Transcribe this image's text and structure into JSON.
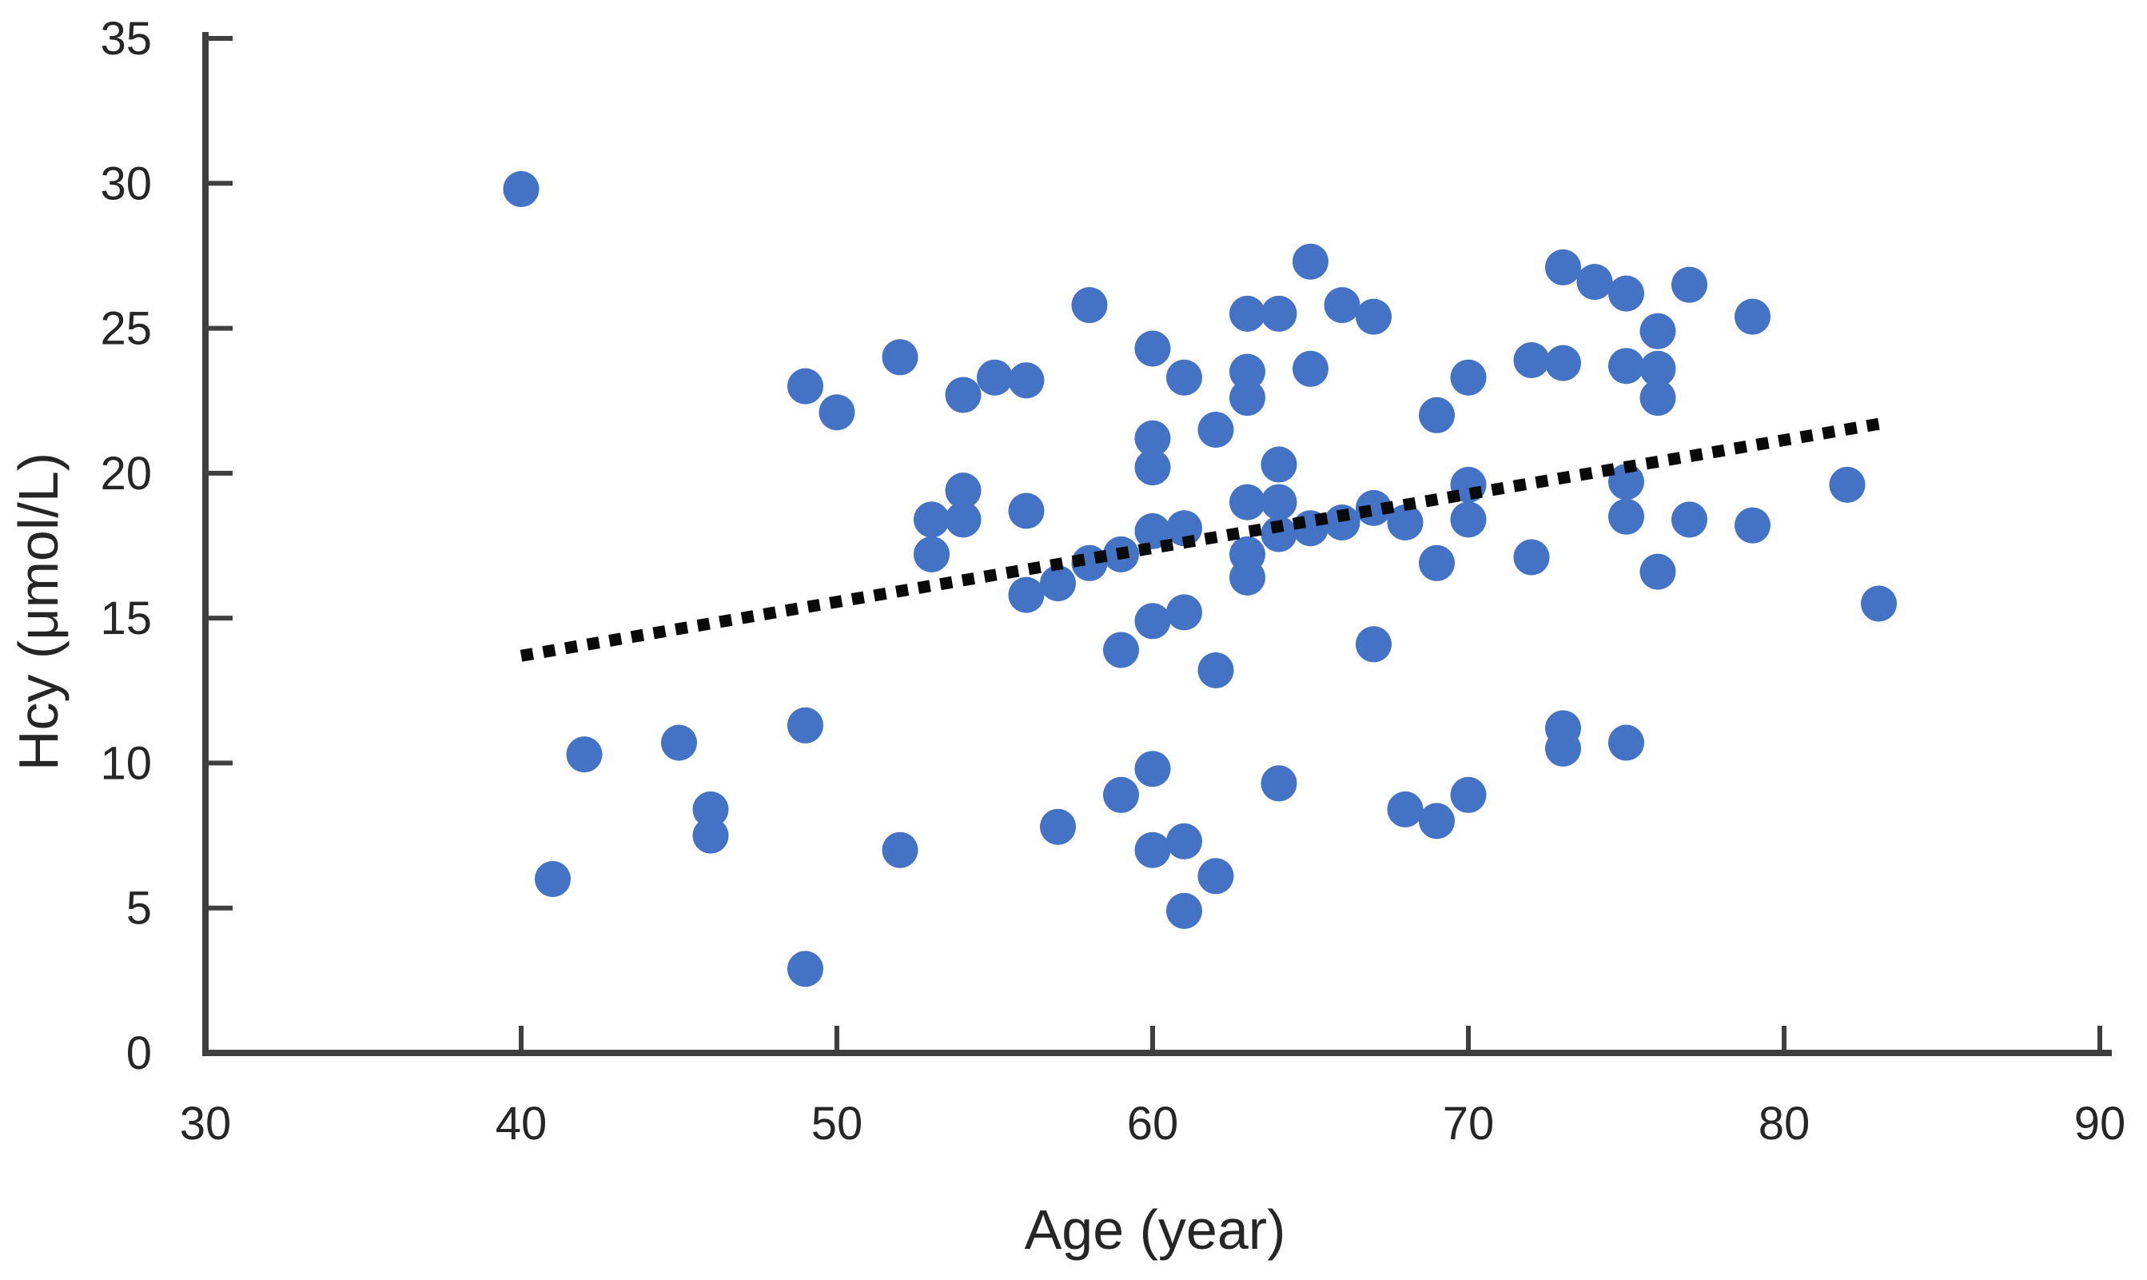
{
  "chart_data": {
    "type": "scatter",
    "title": "",
    "xlabel": "Age (year)",
    "ylabel": "Hcy (μmol/L)",
    "xlim": [
      30,
      90
    ],
    "ylim": [
      0,
      35
    ],
    "x_ticks": [
      30,
      40,
      50,
      60,
      70,
      80,
      90
    ],
    "y_ticks": [
      0,
      5,
      10,
      15,
      20,
      25,
      30,
      35
    ],
    "grid": false,
    "legend_position": "none",
    "marker_color": "#4472C4",
    "axis_color": "#3f3f3f",
    "label_color": "#262626",
    "trendline": {
      "style": "dotted",
      "color": "#0a0a0a",
      "x1": 40,
      "y1": 13.7,
      "x2": 83,
      "y2": 21.7
    },
    "points": [
      [
        40,
        29.8
      ],
      [
        41,
        6.0
      ],
      [
        42,
        10.3
      ],
      [
        45,
        10.7
      ],
      [
        46,
        8.4
      ],
      [
        46,
        7.5
      ],
      [
        49,
        2.9
      ],
      [
        49,
        11.3
      ],
      [
        49,
        23.0
      ],
      [
        50,
        22.1
      ],
      [
        52,
        24.0
      ],
      [
        52,
        7.0
      ],
      [
        53,
        18.4
      ],
      [
        53,
        17.2
      ],
      [
        54,
        22.7
      ],
      [
        54,
        19.4
      ],
      [
        54,
        18.4
      ],
      [
        55,
        23.3
      ],
      [
        56,
        23.2
      ],
      [
        56,
        18.7
      ],
      [
        56,
        15.8
      ],
      [
        57,
        16.2
      ],
      [
        57,
        7.8
      ],
      [
        58,
        25.8
      ],
      [
        58,
        16.9
      ],
      [
        59,
        17.2
      ],
      [
        59,
        13.9
      ],
      [
        59,
        8.9
      ],
      [
        60,
        24.3
      ],
      [
        60,
        21.2
      ],
      [
        60,
        20.2
      ],
      [
        60,
        18.0
      ],
      [
        60,
        14.9
      ],
      [
        60,
        9.8
      ],
      [
        60,
        7.0
      ],
      [
        61,
        23.3
      ],
      [
        61,
        18.1
      ],
      [
        61,
        15.2
      ],
      [
        61,
        7.3
      ],
      [
        61,
        4.9
      ],
      [
        62,
        21.5
      ],
      [
        62,
        13.2
      ],
      [
        62,
        6.1
      ],
      [
        63,
        25.5
      ],
      [
        63,
        23.5
      ],
      [
        63,
        22.6
      ],
      [
        63,
        19.0
      ],
      [
        63,
        17.2
      ],
      [
        63,
        16.4
      ],
      [
        64,
        25.5
      ],
      [
        64,
        20.3
      ],
      [
        64,
        19.0
      ],
      [
        64,
        17.9
      ],
      [
        64,
        9.3
      ],
      [
        65,
        27.3
      ],
      [
        65,
        23.6
      ],
      [
        65,
        18.1
      ],
      [
        66,
        25.8
      ],
      [
        66,
        18.3
      ],
      [
        67,
        25.4
      ],
      [
        67,
        18.8
      ],
      [
        67,
        14.1
      ],
      [
        68,
        18.3
      ],
      [
        68,
        8.4
      ],
      [
        69,
        22.0
      ],
      [
        69,
        16.9
      ],
      [
        69,
        8.0
      ],
      [
        70,
        23.3
      ],
      [
        70,
        19.6
      ],
      [
        70,
        18.4
      ],
      [
        70,
        8.9
      ],
      [
        72,
        23.9
      ],
      [
        72,
        17.1
      ],
      [
        73,
        27.1
      ],
      [
        73,
        23.8
      ],
      [
        73,
        11.2
      ],
      [
        73,
        10.5
      ],
      [
        74,
        26.6
      ],
      [
        75,
        26.2
      ],
      [
        75,
        23.7
      ],
      [
        75,
        19.7
      ],
      [
        75,
        18.5
      ],
      [
        75,
        10.7
      ],
      [
        76,
        24.9
      ],
      [
        76,
        23.6
      ],
      [
        76,
        22.6
      ],
      [
        76,
        16.6
      ],
      [
        77,
        26.5
      ],
      [
        77,
        18.4
      ],
      [
        79,
        25.4
      ],
      [
        79,
        18.2
      ],
      [
        82,
        19.6
      ],
      [
        83,
        15.5
      ]
    ]
  }
}
